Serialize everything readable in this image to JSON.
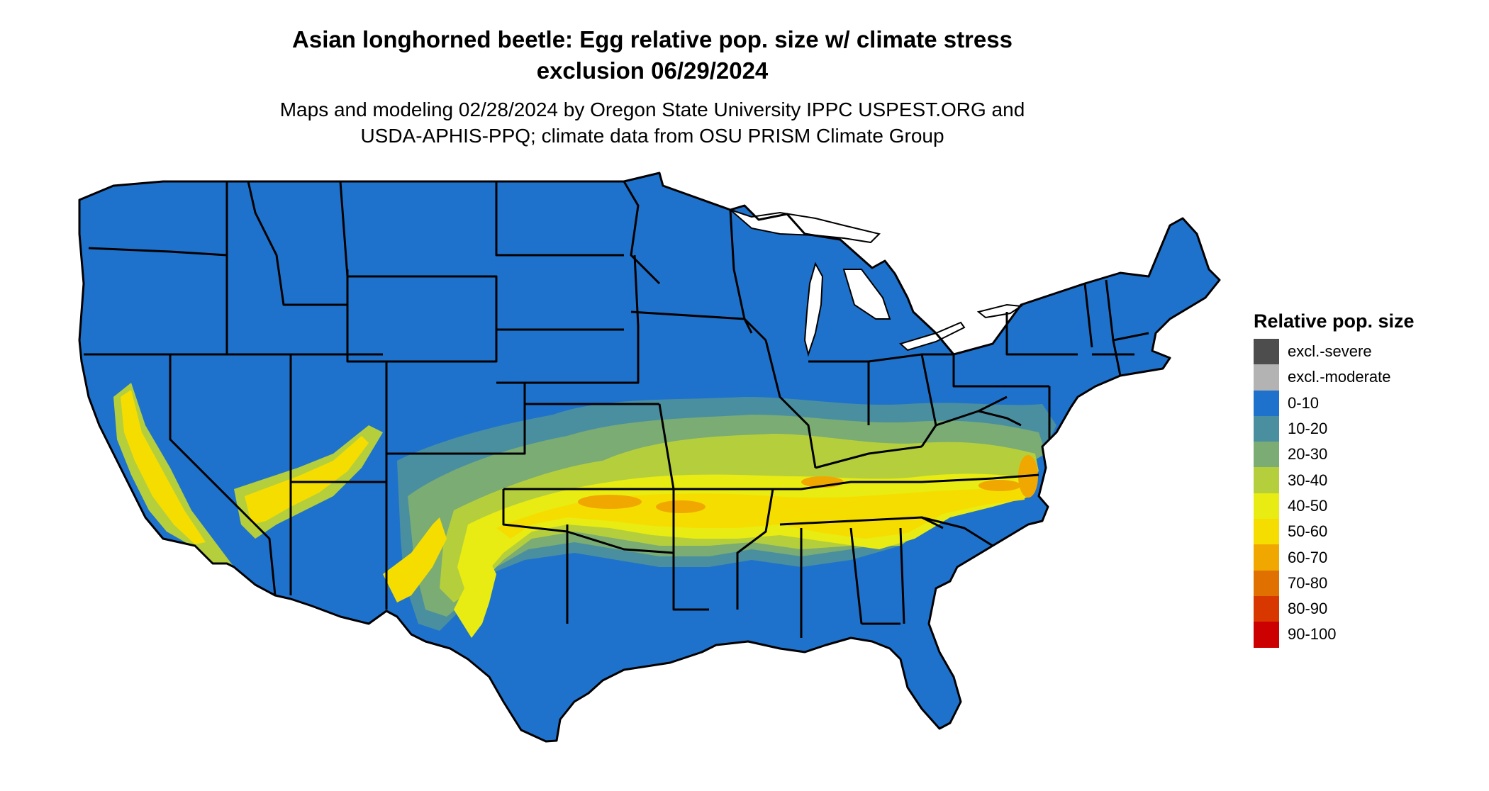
{
  "title": {
    "line1": "Asian longhorned beetle: Egg relative pop. size w/ climate stress",
    "line2": "exclusion 06/29/2024"
  },
  "subtitle": {
    "line1": "Maps and modeling 02/28/2024 by Oregon State University IPPC USPEST.ORG and",
    "line2": "USDA-APHIS-PPQ; climate data from OSU PRISM Climate Group"
  },
  "legend": {
    "title": "Relative pop. size",
    "items": [
      {
        "label": "excl.-severe",
        "color": "#4d4d4d"
      },
      {
        "label": "excl.-moderate",
        "color": "#b3b3b3"
      },
      {
        "label": "0-10",
        "color": "#1f72cc"
      },
      {
        "label": "10-20",
        "color": "#4a8fa0"
      },
      {
        "label": "20-30",
        "color": "#7aac73"
      },
      {
        "label": "30-40",
        "color": "#b5cf3c"
      },
      {
        "label": "40-50",
        "color": "#e8ec12"
      },
      {
        "label": "50-60",
        "color": "#f6dd00"
      },
      {
        "label": "60-70",
        "color": "#f0a800"
      },
      {
        "label": "70-80",
        "color": "#e07000"
      },
      {
        "label": "80-90",
        "color": "#d83800"
      },
      {
        "label": "90-100",
        "color": "#cc0000"
      }
    ]
  },
  "map": {
    "region": "Contiguous United States",
    "base_class": "0-10",
    "notable_classes": [
      "10-20",
      "20-30",
      "30-40",
      "40-50",
      "50-60",
      "60-70"
    ],
    "colors": {
      "background": "#ffffff",
      "land": "#1f72cc",
      "lakes": "#ffffff",
      "state_borders": "#000000"
    }
  }
}
